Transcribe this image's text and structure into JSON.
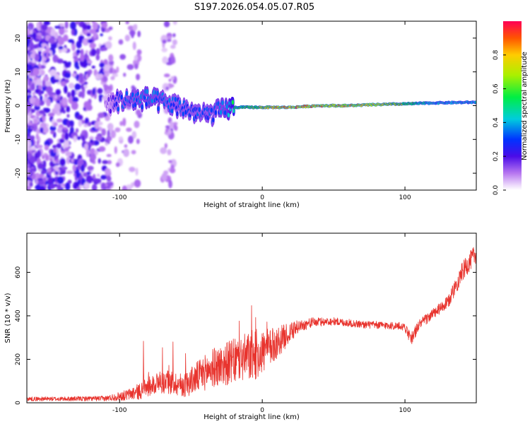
{
  "title": "S197.2026.054.05.07.R05",
  "colors": {
    "snr_line": "#e8342e",
    "axis": "#000000",
    "background": "#ffffff"
  },
  "chart_data": [
    {
      "type": "heatmap",
      "name": "spectrogram",
      "xlabel": "Height of straight line (km)",
      "ylabel": "Frequency (Hz)",
      "xlim": [
        -165,
        150
      ],
      "ylim": [
        -25,
        25
      ],
      "xticks": [
        -100,
        0,
        100
      ],
      "yticks": [
        -20,
        -10,
        0,
        10,
        20
      ],
      "colorbar": {
        "label": "Normalized spectral amplitude",
        "range": [
          0,
          1
        ],
        "ticks": [
          0.0,
          0.2,
          0.4,
          0.6,
          0.8
        ],
        "tick_labels": [
          "0.0",
          "0.2",
          "0.4",
          "0.6",
          "0.8"
        ]
      },
      "signal_ridge": {
        "x": [
          -165,
          -110,
          -100,
          -80,
          -60,
          -40,
          -25,
          -20,
          0,
          20,
          40,
          60,
          80,
          100,
          120,
          150
        ],
        "frequency": [
          0,
          0,
          1.5,
          2,
          0,
          -3,
          -1,
          -0.5,
          -0.5,
          -0.5,
          0,
          0,
          0.3,
          0.5,
          0.8,
          1
        ],
        "amplitude": [
          0.1,
          0.12,
          0.3,
          0.35,
          0.3,
          0.3,
          0.35,
          0.5,
          0.65,
          0.85,
          0.8,
          0.75,
          0.8,
          0.6,
          0.4,
          0.4
        ]
      }
    },
    {
      "type": "line",
      "name": "snr",
      "xlabel": "Height of straight line (km)",
      "ylabel": "SNR (10 * v/v)",
      "xlim": [
        -165,
        150
      ],
      "ylim": [
        0,
        780
      ],
      "xticks": [
        -100,
        0,
        100
      ],
      "yticks": [
        0,
        200,
        400,
        600
      ],
      "series": [
        {
          "name": "SNR",
          "x": [
            -165,
            -140,
            -110,
            -95,
            -85,
            -75,
            -65,
            -55,
            -45,
            -35,
            -25,
            -15,
            -5,
            5,
            15,
            25,
            35,
            50,
            70,
            90,
            100,
            104,
            110,
            120,
            130,
            140,
            150
          ],
          "values": [
            18,
            18,
            20,
            35,
            55,
            90,
            95,
            80,
            120,
            160,
            180,
            200,
            220,
            250,
            300,
            350,
            370,
            375,
            360,
            355,
            350,
            290,
            360,
            410,
            460,
            600,
            690
          ],
          "noise": [
            10,
            10,
            12,
            25,
            40,
            50,
            55,
            55,
            75,
            90,
            100,
            110,
            120,
            90,
            60,
            30,
            22,
            18,
            18,
            18,
            20,
            30,
            25,
            25,
            30,
            45,
            45
          ]
        }
      ]
    }
  ]
}
